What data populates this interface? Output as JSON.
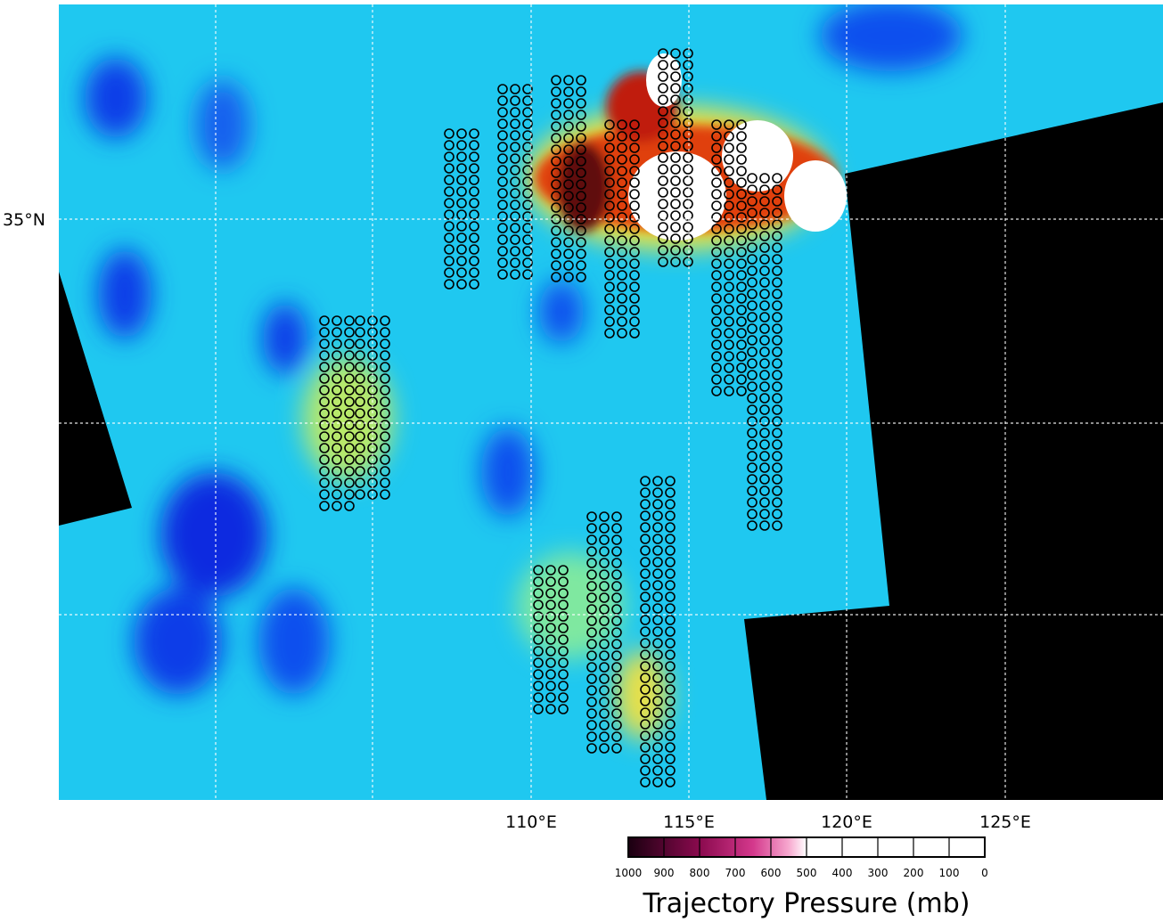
{
  "map": {
    "lat_labels": [
      "35°N"
    ],
    "lon_labels": [
      "110°E",
      "115°E",
      "120°E",
      "125°E"
    ]
  },
  "colorbar": {
    "title": "Trajectory Pressure (mb)",
    "ticks": [
      1000,
      900,
      800,
      700,
      600,
      500,
      400,
      300,
      200,
      100,
      0
    ]
  }
}
